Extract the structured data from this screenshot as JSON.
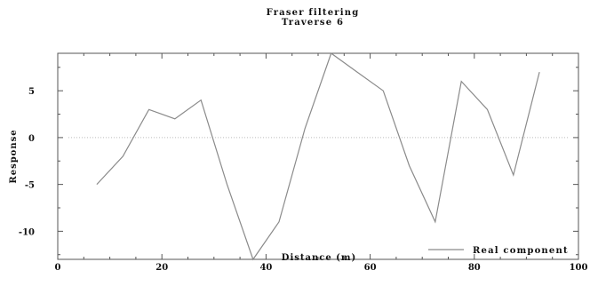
{
  "chart_data": {
    "type": "line",
    "title": "Fraser filtering",
    "subtitle": "Traverse 6",
    "xlabel": "Distance (m)",
    "ylabel": "Response",
    "xlim": [
      0,
      100
    ],
    "ylim": [
      -13,
      9
    ],
    "xticks": [
      0,
      20,
      40,
      60,
      80,
      100
    ],
    "yticks": [
      -10,
      -5,
      0,
      5
    ],
    "grid": false,
    "zero_reference_line": true,
    "legend_position": "bottom-right",
    "series": [
      {
        "name": "Real component",
        "color": "#8a8a8a",
        "x": [
          7.5,
          12.5,
          17.5,
          22.5,
          27.5,
          32.5,
          37.5,
          42.5,
          47.5,
          52.5,
          57.5,
          62.5,
          67.5,
          72.5,
          77.5,
          82.5,
          87.5,
          92.5
        ],
        "y": [
          -5,
          -2,
          3,
          2,
          4,
          -5,
          -13,
          -9,
          1,
          9,
          7,
          5,
          -3,
          -9,
          6,
          3,
          -4,
          7
        ]
      }
    ]
  },
  "colors": {
    "axis": "#555555",
    "zero_line": "#bbbbbb"
  }
}
